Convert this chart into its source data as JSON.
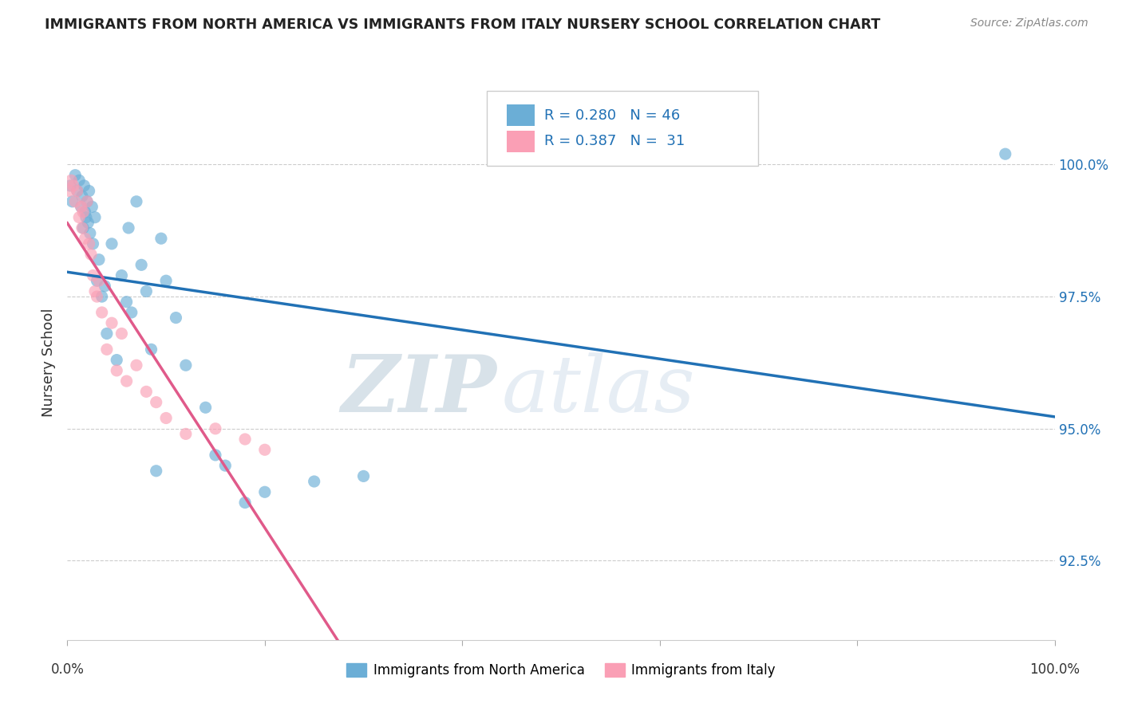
{
  "title": "IMMIGRANTS FROM NORTH AMERICA VS IMMIGRANTS FROM ITALY NURSERY SCHOOL CORRELATION CHART",
  "source": "Source: ZipAtlas.com",
  "ylabel": "Nursery School",
  "y_ticks": [
    92.5,
    95.0,
    97.5,
    100.0
  ],
  "y_tick_labels": [
    "92.5%",
    "95.0%",
    "97.5%",
    "100.0%"
  ],
  "x_min": 0.0,
  "x_max": 100.0,
  "y_min": 91.0,
  "y_max": 101.5,
  "blue_color": "#6baed6",
  "pink_color": "#fa9fb5",
  "blue_line_color": "#2171b5",
  "pink_line_color": "#e05a8a",
  "legend_blue_R": "R = 0.280",
  "legend_blue_N": "N = 46",
  "legend_pink_R": "R = 0.387",
  "legend_pink_N": "N =  31",
  "watermark_zip": "ZIP",
  "watermark_atlas": "atlas",
  "blue_label": "Immigrants from North America",
  "pink_label": "Immigrants from Italy",
  "blue_scatter_x": [
    0.3,
    0.5,
    0.8,
    1.0,
    1.2,
    1.4,
    1.5,
    1.6,
    1.7,
    1.8,
    1.9,
    2.0,
    2.1,
    2.2,
    2.3,
    2.5,
    2.6,
    2.8,
    3.0,
    3.2,
    3.5,
    3.8,
    4.0,
    4.5,
    5.0,
    5.5,
    6.0,
    6.2,
    6.5,
    7.0,
    7.5,
    8.0,
    8.5,
    9.0,
    9.5,
    10.0,
    11.0,
    12.0,
    14.0,
    15.0,
    16.0,
    18.0,
    20.0,
    25.0,
    30.0,
    95.0
  ],
  "blue_scatter_y": [
    99.6,
    99.3,
    99.8,
    99.5,
    99.7,
    99.2,
    99.4,
    98.8,
    99.6,
    99.1,
    99.0,
    99.3,
    98.9,
    99.5,
    98.7,
    99.2,
    98.5,
    99.0,
    97.8,
    98.2,
    97.5,
    97.7,
    96.8,
    98.5,
    96.3,
    97.9,
    97.4,
    98.8,
    97.2,
    99.3,
    98.1,
    97.6,
    96.5,
    94.2,
    98.6,
    97.8,
    97.1,
    96.2,
    95.4,
    94.5,
    94.3,
    93.6,
    93.8,
    94.0,
    94.1,
    100.2
  ],
  "pink_scatter_x": [
    0.2,
    0.4,
    0.6,
    0.8,
    1.0,
    1.2,
    1.4,
    1.5,
    1.6,
    1.8,
    2.0,
    2.2,
    2.4,
    2.6,
    2.8,
    3.0,
    3.2,
    3.5,
    4.0,
    4.5,
    5.0,
    5.5,
    6.0,
    7.0,
    8.0,
    9.0,
    10.0,
    12.0,
    15.0,
    18.0,
    20.0
  ],
  "pink_scatter_y": [
    99.5,
    99.7,
    99.6,
    99.3,
    99.5,
    99.0,
    99.2,
    98.8,
    99.1,
    98.6,
    99.3,
    98.5,
    98.3,
    97.9,
    97.6,
    97.5,
    97.8,
    97.2,
    96.5,
    97.0,
    96.1,
    96.8,
    95.9,
    96.2,
    95.7,
    95.5,
    95.2,
    94.9,
    95.0,
    94.8,
    94.6
  ]
}
